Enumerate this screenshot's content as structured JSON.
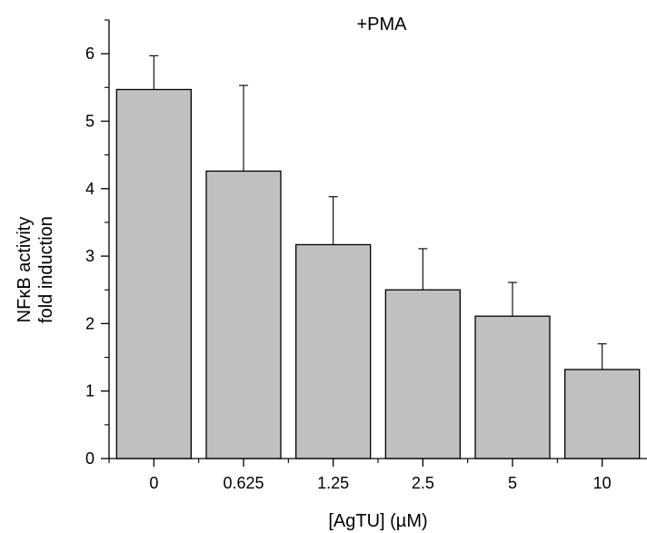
{
  "chart_data": {
    "type": "bar",
    "title": "",
    "annotation": "+PMA",
    "xlabel": "[AgTU] (µM)",
    "ylabel_line1": "NFκB activity",
    "ylabel_line2": "fold induction",
    "categories": [
      "0",
      "0.625",
      "1.25",
      "2.5",
      "5",
      "10"
    ],
    "series": [
      {
        "values": [
          5.47,
          4.26,
          3.17,
          2.5,
          2.11,
          1.32
        ],
        "error_plus": [
          0.5,
          1.27,
          0.71,
          0.61,
          0.5,
          0.38
        ]
      }
    ],
    "ylim": [
      0,
      6.5
    ],
    "yticks": [
      "0",
      "1",
      "2",
      "3",
      "4",
      "5",
      "6"
    ],
    "grid": false,
    "bar_fill": "#c0c0c0",
    "bar_stroke": "#000000"
  }
}
